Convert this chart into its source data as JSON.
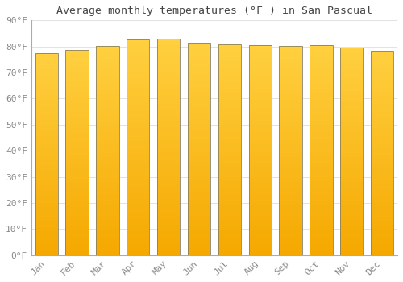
{
  "title": "Average monthly temperatures (°F ) in San Pascual",
  "months": [
    "Jan",
    "Feb",
    "Mar",
    "Apr",
    "May",
    "Jun",
    "Jul",
    "Aug",
    "Sep",
    "Oct",
    "Nov",
    "Dec"
  ],
  "values": [
    77.5,
    78.8,
    80.2,
    82.6,
    83.0,
    81.5,
    80.8,
    80.4,
    80.2,
    80.6,
    79.7,
    78.4
  ],
  "bar_color_top": "#FFD040",
  "bar_color_bottom": "#F5A800",
  "bar_edge_color": "#888060",
  "background_color": "#FFFFFF",
  "grid_color": "#DDDDDD",
  "ylim": [
    0,
    90
  ],
  "yticks": [
    0,
    10,
    20,
    30,
    40,
    50,
    60,
    70,
    80,
    90
  ],
  "ytick_labels": [
    "0°F",
    "10°F",
    "20°F",
    "30°F",
    "40°F",
    "50°F",
    "60°F",
    "70°F",
    "80°F",
    "90°F"
  ],
  "title_fontsize": 9.5,
  "tick_fontsize": 8,
  "tick_color": "#888888",
  "title_color": "#444444",
  "bar_width": 0.75
}
